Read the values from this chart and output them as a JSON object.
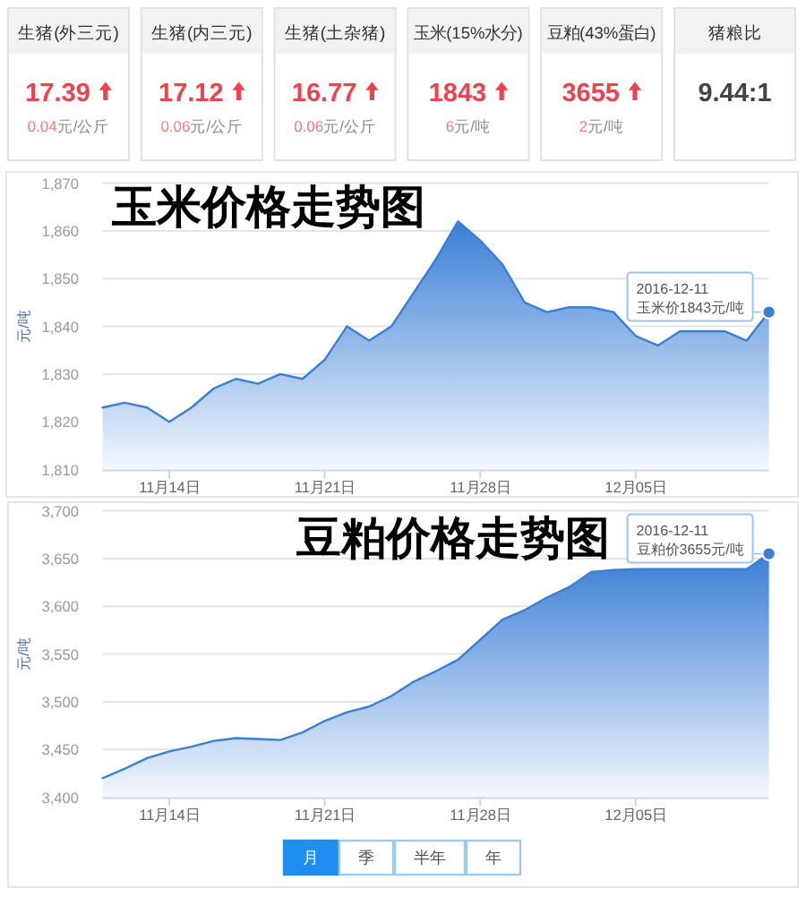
{
  "chart_data": [
    {
      "type": "other",
      "categories": [
        "生猪(外三元)",
        "生猪(内三元)",
        "生猪(土杂猪)",
        "玉米(15%水分)",
        "豆粕(43%蛋白)",
        "猪粮比"
      ],
      "value_labels": [
        "17.39",
        "17.12",
        "16.77",
        "1843",
        "3655",
        "9.44:1"
      ],
      "annotations": [
        "0.04元/公斤",
        "0.06元/公斤",
        "0.06元/公斤",
        "6元/吨",
        "2元/吨"
      ]
    },
    {
      "type": "area",
      "title": "玉米价格走势图",
      "ylabel": "元/吨",
      "color": "#3a7fd6",
      "grid": "y",
      "x": [
        "2016-11-11",
        "2016-11-12",
        "2016-11-13",
        "2016-11-14",
        "2016-11-15",
        "2016-11-16",
        "2016-11-17",
        "2016-11-18",
        "2016-11-19",
        "2016-11-20",
        "2016-11-21",
        "2016-11-22",
        "2016-11-23",
        "2016-11-24",
        "2016-11-25",
        "2016-11-26",
        "2016-11-27",
        "2016-11-28",
        "2016-11-29",
        "2016-11-30",
        "2016-12-01",
        "2016-12-02",
        "2016-12-03",
        "2016-12-04",
        "2016-12-05",
        "2016-12-06",
        "2016-12-07",
        "2016-12-08",
        "2016-12-09",
        "2016-12-10",
        "2016-12-11"
      ],
      "values": [
        1823,
        1824,
        1823,
        1820,
        1823,
        1827,
        1829,
        1828,
        1830,
        1829,
        1833,
        1840,
        1837,
        1840,
        1847,
        1854,
        1862,
        1858,
        1853,
        1845,
        1843,
        1844,
        1844,
        1843,
        1838,
        1836,
        1839,
        1839,
        1839,
        1837,
        1843
      ],
      "xlim": [
        "2016-11-11",
        "2016-12-11"
      ],
      "xticks": [
        {
          "value": "2016-11-14",
          "label": "11月14日"
        },
        {
          "value": "2016-11-21",
          "label": "11月21日"
        },
        {
          "value": "2016-11-28",
          "label": "11月28日"
        },
        {
          "value": "2016-12-05",
          "label": "12月05日"
        }
      ],
      "ylim": [
        1810,
        1870
      ],
      "yticks": [
        {
          "value": 1810,
          "label": "1,810"
        },
        {
          "value": 1820,
          "label": "1,820"
        },
        {
          "value": 1830,
          "label": "1,830"
        },
        {
          "value": 1840,
          "label": "1,840"
        },
        {
          "value": 1850,
          "label": "1,850"
        },
        {
          "value": 1860,
          "label": "1,860"
        },
        {
          "value": 1870,
          "label": "1,870"
        }
      ],
      "annotations": [
        {
          "text": "2016-12-11 玉米价1843元/吨",
          "x": "2016-12-11",
          "y": 1843
        }
      ]
    },
    {
      "type": "area",
      "title": "豆粕价格走势图",
      "ylabel": "元/吨",
      "color": "#3a7fd6",
      "grid": "y",
      "x": [
        "2016-11-11",
        "2016-11-12",
        "2016-11-13",
        "2016-11-14",
        "2016-11-15",
        "2016-11-16",
        "2016-11-17",
        "2016-11-18",
        "2016-11-19",
        "2016-11-20",
        "2016-11-21",
        "2016-11-22",
        "2016-11-23",
        "2016-11-24",
        "2016-11-25",
        "2016-11-26",
        "2016-11-27",
        "2016-11-28",
        "2016-11-29",
        "2016-11-30",
        "2016-12-01",
        "2016-12-02",
        "2016-12-03",
        "2016-12-04",
        "2016-12-05",
        "2016-12-06",
        "2016-12-07",
        "2016-12-08",
        "2016-12-09",
        "2016-12-10",
        "2016-12-11"
      ],
      "values": [
        3420,
        3430,
        3441,
        3448,
        3453,
        3459,
        3462,
        3461,
        3460,
        3468,
        3480,
        3489,
        3495,
        3506,
        3521,
        3532,
        3544,
        3565,
        3586,
        3596,
        3609,
        3620,
        3636,
        3638,
        3639,
        3639,
        3639,
        3639,
        3639,
        3639,
        3655
      ],
      "xlim": [
        "2016-11-11",
        "2016-12-11"
      ],
      "xticks": [
        {
          "value": "2016-11-14",
          "label": "11月14日"
        },
        {
          "value": "2016-11-21",
          "label": "11月21日"
        },
        {
          "value": "2016-11-28",
          "label": "11月28日"
        },
        {
          "value": "2016-12-05",
          "label": "12月05日"
        }
      ],
      "ylim": [
        3400,
        3700
      ],
      "yticks": [
        {
          "value": 3400,
          "label": "3,400"
        },
        {
          "value": 3450,
          "label": "3,450"
        },
        {
          "value": 3500,
          "label": "3,500"
        },
        {
          "value": 3550,
          "label": "3,550"
        },
        {
          "value": 3600,
          "label": "3,600"
        },
        {
          "value": 3650,
          "label": "3,650"
        },
        {
          "value": 3700,
          "label": "3,700"
        }
      ],
      "annotations": [
        {
          "text": "2016-12-11 豆粕价3655元/吨",
          "x": "2016-12-11",
          "y": 3655
        }
      ]
    },
    {
      "type": "other",
      "categories": [
        "月",
        "季",
        "半年",
        "年"
      ]
    }
  ]
}
